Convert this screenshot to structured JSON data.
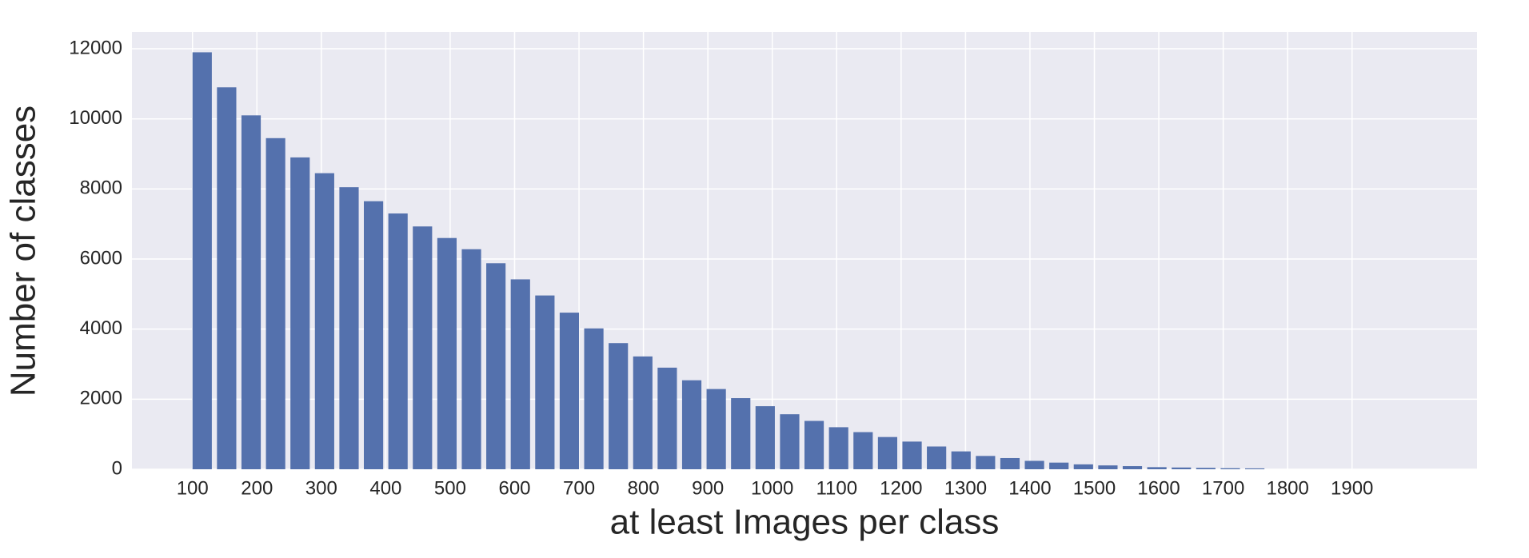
{
  "chart_data": {
    "type": "bar",
    "x_label": "at least Images per class",
    "y_label": "Number of classes",
    "x": [
      115,
      153,
      191,
      229,
      267,
      305,
      343,
      381,
      419,
      457,
      495,
      533,
      571,
      609,
      647,
      685,
      723,
      761,
      799,
      837,
      875,
      913,
      951,
      989,
      1027,
      1065,
      1103,
      1141,
      1179,
      1217,
      1255,
      1293,
      1331,
      1369,
      1407,
      1445,
      1483,
      1521,
      1559,
      1597,
      1635,
      1673,
      1711,
      1749
    ],
    "values": [
      11900,
      10900,
      10100,
      9450,
      8900,
      8450,
      8050,
      7650,
      7300,
      6930,
      6600,
      6280,
      5880,
      5420,
      4960,
      4470,
      4020,
      3600,
      3220,
      2900,
      2540,
      2290,
      2030,
      1800,
      1570,
      1380,
      1200,
      1060,
      920,
      790,
      650,
      510,
      380,
      320,
      240,
      190,
      140,
      110,
      90,
      60,
      50,
      40,
      30,
      25
    ],
    "bar_width": 30,
    "color": "#5471ad",
    "xlim": [
      6,
      2094
    ],
    "xticks": [
      100,
      200,
      300,
      400,
      500,
      600,
      700,
      800,
      900,
      1000,
      1100,
      1200,
      1300,
      1400,
      1500,
      1600,
      1700,
      1800,
      1900
    ],
    "ylim": [
      0,
      12480
    ],
    "yticks": [
      0,
      2000,
      4000,
      6000,
      8000,
      10000,
      12000
    ],
    "grid": true
  }
}
